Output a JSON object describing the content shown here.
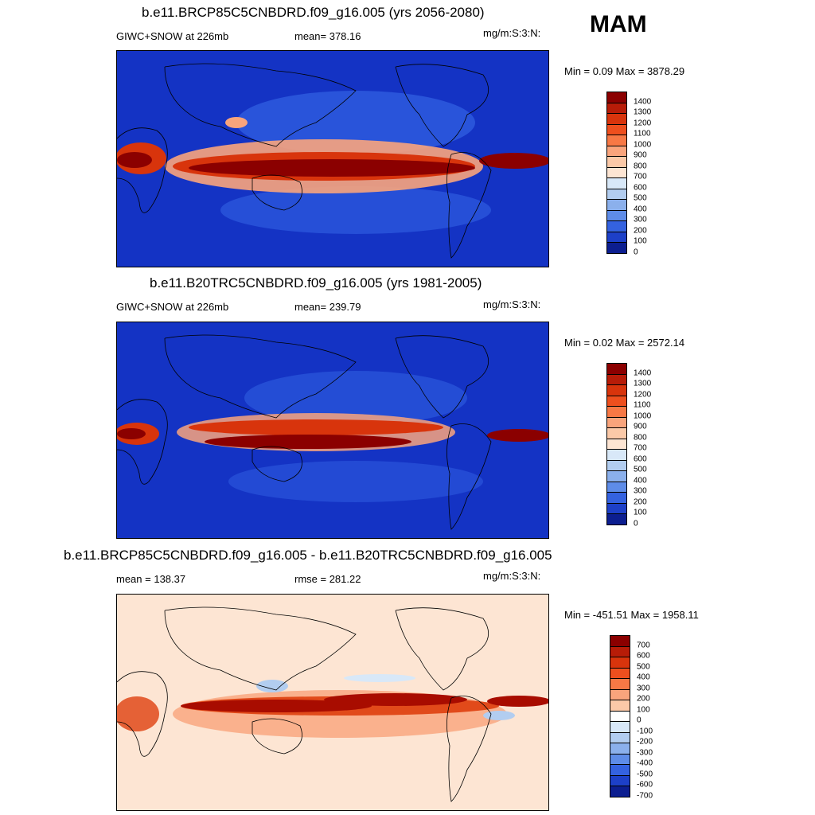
{
  "season": "MAM",
  "units": "mg/m:S:3:N:",
  "panels": [
    {
      "title": "b.e11.BRCP85C5CNBDRD.f09_g16.005 (yrs 2056-2080)",
      "left_label": "GIWC+SNOW at 226mb",
      "stat_label": "mean= 378.16",
      "minmax": "Min =   0.09 Max = 3878.29",
      "levels": [
        "1400",
        "1300",
        "1200",
        "1100",
        "1000",
        "900",
        "800",
        "700",
        "600",
        "500",
        "400",
        "300",
        "200",
        "100",
        "0"
      ],
      "colors": [
        "#8b0000",
        "#b71c08",
        "#d8340c",
        "#ee4f1e",
        "#f77845",
        "#f9a47c",
        "#fbc9a8",
        "#fde5d3",
        "#d8e8f8",
        "#b2cdf0",
        "#8bb0ec",
        "#5e8ce8",
        "#3462e0",
        "#1d40c8",
        "#0c1e90"
      ]
    },
    {
      "title": "b.e11.B20TRC5CNBDRD.f09_g16.005 (yrs 1981-2005)",
      "left_label": "GIWC+SNOW at 226mb",
      "stat_label": "mean= 239.79",
      "minmax": "Min =   0.02 Max = 2572.14",
      "levels": [
        "1400",
        "1300",
        "1200",
        "1100",
        "1000",
        "900",
        "800",
        "700",
        "600",
        "500",
        "400",
        "300",
        "200",
        "100",
        "0"
      ],
      "colors": [
        "#8b0000",
        "#b71c08",
        "#d8340c",
        "#ee4f1e",
        "#f77845",
        "#f9a47c",
        "#fbc9a8",
        "#fde5d3",
        "#d8e8f8",
        "#b2cdf0",
        "#8bb0ec",
        "#5e8ce8",
        "#3462e0",
        "#1d40c8",
        "#0c1e90"
      ]
    },
    {
      "title": "b.e11.BRCP85C5CNBDRD.f09_g16.005 - b.e11.B20TRC5CNBDRD.f09_g16.005",
      "left_label": "mean = 138.37",
      "stat_label": "rmse = 281.22",
      "minmax": "Min = -451.51 Max = 1958.11",
      "levels": [
        "700",
        "600",
        "500",
        "400",
        "300",
        "200",
        "100",
        "0",
        "-100",
        "-200",
        "-300",
        "-400",
        "-500",
        "-600",
        "-700"
      ],
      "colors": [
        "#8b0000",
        "#b71c08",
        "#d8340c",
        "#ee4f1e",
        "#f77845",
        "#f9a47c",
        "#fbc9a8",
        "#ffffff",
        "#d8e8f8",
        "#b2cdf0",
        "#8bb0ec",
        "#5e8ce8",
        "#3462e0",
        "#1d40c8",
        "#0c1e90"
      ]
    }
  ],
  "map_colors": {
    "ocean_base": "#1433c4",
    "ocean_light": "#3262e4",
    "band_dark": "#8b0000",
    "band_mid": "#d8340c",
    "band_light": "#f9a47c",
    "diff_base": "#fde5d3",
    "diff_band": "#a80c00",
    "diff_mid": "#e14a1a",
    "diff_neg": "#b2cdf0",
    "coast": "#000000"
  }
}
